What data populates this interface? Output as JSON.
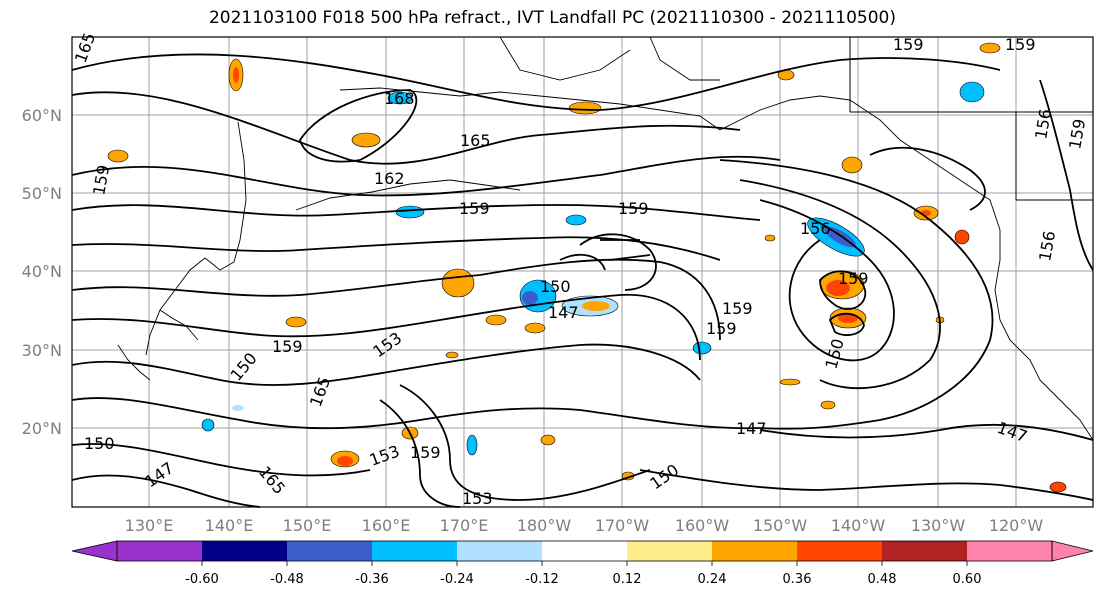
{
  "title": "2021103100 F018 500 hPa refract., IVT Landfall PC (2021110300 - 2021110500)",
  "latitude_labels": [
    "60°N",
    "50°N",
    "40°N",
    "30°N",
    "20°N"
  ],
  "longitude_labels": [
    "130°E",
    "140°E",
    "150°E",
    "160°E",
    "170°E",
    "180°W",
    "170°W",
    "160°W",
    "150°W",
    "140°W",
    "130°W",
    "120°W"
  ],
  "colorbar": {
    "colors": [
      "#9a32cd",
      "#00008b",
      "#3a5fcd",
      "#00bfff",
      "#b0e2ff",
      "#ffffff",
      "#ffec8b",
      "#ffa500",
      "#ff4500",
      "#b22222",
      "#ff82ab"
    ],
    "tick_labels": [
      "-0.60",
      "-0.48",
      "-0.36",
      "-0.24",
      "-0.12",
      "0.12",
      "0.24",
      "0.36",
      "0.48",
      "0.60"
    ]
  },
  "contour_labels": [
    "165",
    "168",
    "165",
    "162",
    "159",
    "159",
    "159",
    "159",
    "156",
    "159",
    "156",
    "159",
    "150",
    "159",
    "147",
    "159",
    "150",
    "159",
    "156",
    "153",
    "159",
    "150",
    "147",
    "153",
    "159",
    "153",
    "150",
    "147",
    "165",
    "165",
    "147",
    "150"
  ],
  "contour_color": "#000000",
  "landmask_color": "#000000"
}
